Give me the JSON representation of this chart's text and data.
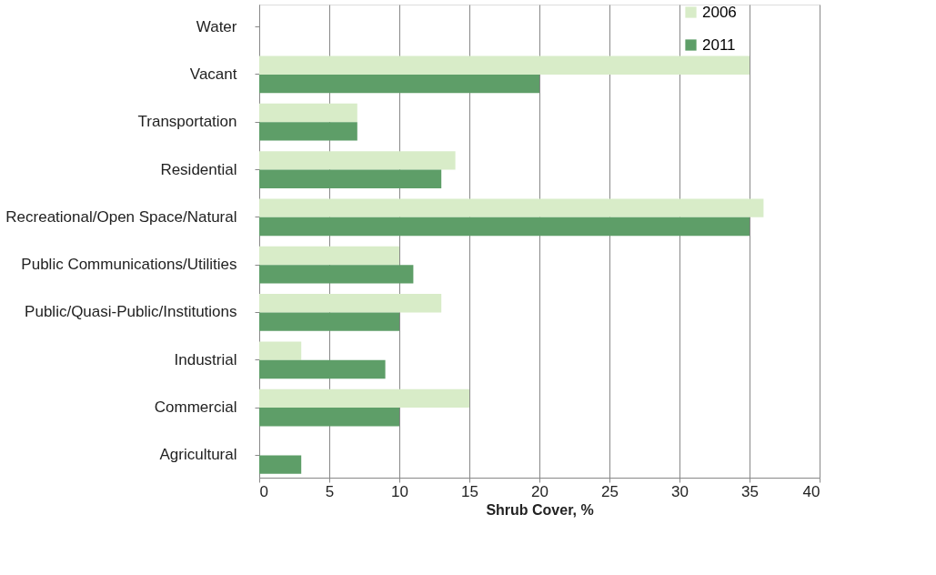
{
  "chart_data": {
    "type": "bar",
    "orientation": "horizontal",
    "xlabel": "Shrub Cover, %",
    "categories": [
      "Water",
      "Vacant",
      "Transportation",
      "Residential",
      "Recreational/Open Space/Natural",
      "Public Communications/Utilities",
      "Public/Quasi-Public/Institutions",
      "Industrial",
      "Commercial",
      "Agricultural"
    ],
    "series": [
      {
        "name": "2006",
        "color": "#d8ecc8",
        "values": [
          null,
          35,
          7,
          14,
          36,
          10,
          13,
          3,
          15,
          null
        ]
      },
      {
        "name": "2011",
        "color": "#5e9e68",
        "values": [
          null,
          20,
          7,
          13,
          35,
          11,
          10,
          9,
          10,
          3
        ]
      }
    ],
    "xlim": [
      0,
      40
    ],
    "xticks": [
      0,
      5,
      10,
      15,
      20,
      25,
      30,
      35,
      40
    ],
    "grid": "x",
    "legend": "right"
  }
}
